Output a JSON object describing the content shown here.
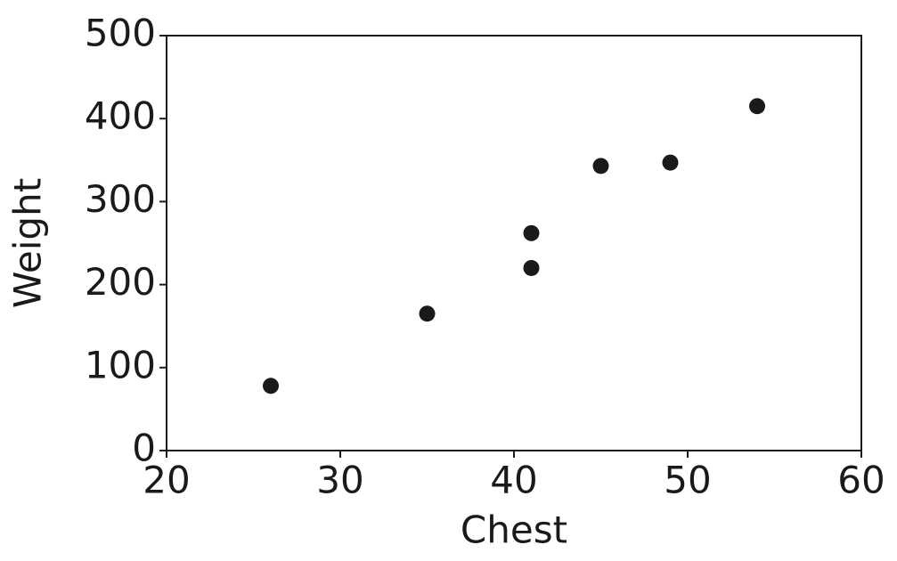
{
  "chart_data": {
    "type": "scatter",
    "x_label": "Chest",
    "y_label": "Weight",
    "x": [
      26,
      35,
      41,
      41,
      45,
      49,
      54
    ],
    "values": [
      78,
      165,
      220,
      262,
      343,
      347,
      415
    ],
    "color": "#1a1a1a",
    "xlim": [
      20,
      60
    ],
    "xticks": [
      20,
      30,
      40,
      50,
      60
    ],
    "ylim": [
      0,
      500
    ],
    "yticks": [
      0,
      100,
      200,
      300,
      400,
      500
    ]
  }
}
